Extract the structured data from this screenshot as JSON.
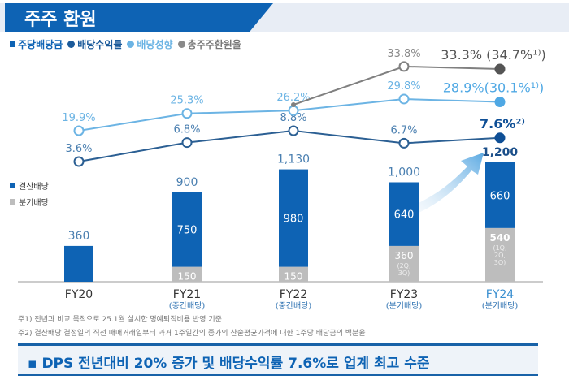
{
  "header": {
    "title": "주주 환원"
  },
  "legend": [
    {
      "label": "주당배당금",
      "color": "#0e63b4",
      "shape": "square"
    },
    {
      "label": "배당수익률",
      "color": "#1b5a9a",
      "shape": "circle"
    },
    {
      "label": "배당성향",
      "color": "#6cb4e4",
      "shape": "circle"
    },
    {
      "label": "총주주환원율",
      "color": "#8a8a8a",
      "shape": "circle"
    }
  ],
  "bar_legend": [
    {
      "label": "결산배당",
      "color": "#0e63b4"
    },
    {
      "label": "분기배당",
      "color": "#bdbdbd"
    }
  ],
  "chart_data": {
    "type": "bar+line",
    "categories": [
      "FY20",
      "FY21",
      "FY22",
      "FY23",
      "FY24"
    ],
    "category_sublabels": [
      "",
      "(중간배당)",
      "(중간배당)",
      "(분기배당)",
      "(분기배당)"
    ],
    "dps_total_labels": [
      "360",
      "900",
      "1,130",
      "1,000",
      "1,200"
    ],
    "series": [
      {
        "name": "결산배당",
        "values": [
          360,
          750,
          980,
          640,
          660
        ]
      },
      {
        "name": "분기배당",
        "values": [
          0,
          150,
          150,
          360,
          540
        ],
        "notes": [
          "",
          "",
          "",
          "(2Q, 3Q)",
          "(1Q, 2Q, 3Q)"
        ]
      },
      {
        "name": "배당수익률",
        "values": [
          3.6,
          6.8,
          8.8,
          6.7,
          7.6
        ],
        "labels": [
          "3.6%",
          "6.8%",
          "8.8%",
          "6.7%",
          "7.6%²⁾"
        ]
      },
      {
        "name": "배당성향",
        "values": [
          19.9,
          25.3,
          26.2,
          29.8,
          28.9
        ],
        "labels": [
          "19.9%",
          "25.3%",
          "26.2%",
          "29.8%",
          "28.9%(30.1%¹⁾)"
        ]
      },
      {
        "name": "총주주환원율",
        "values": [
          null,
          null,
          26.2,
          33.8,
          33.3
        ],
        "labels": [
          "",
          "",
          "",
          "33.8%",
          "33.3% (34.7%¹⁾)"
        ]
      }
    ]
  },
  "notes": [
    "주1) 전년과 비교 목적으로 25.1월 실시한 명예퇴직비용 반영 기준",
    "주2) 결산배당 결정일의 직전 매매거래일부터 과거 1주일간의 종가의 산술평균가격에 대한 1주당 배당금의 백분율"
  ],
  "banner": "▪ DPS 전년대비 20% 증가 및 배당수익률 7.6%로 업계 최고 수준"
}
